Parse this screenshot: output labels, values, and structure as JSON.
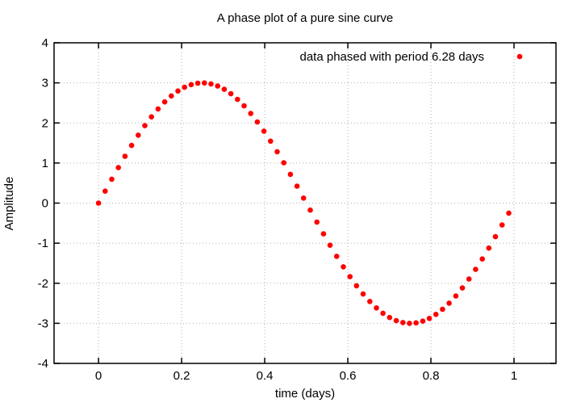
{
  "chart_data": {
    "type": "scatter",
    "title": "A phase plot of a pure sine curve",
    "xlabel": "time (days)",
    "ylabel": "Amplitude",
    "legend": {
      "position": "top-right-inside",
      "entries": [
        {
          "label": "data phased with period 6.28 days",
          "marker": "filled-circle-icon",
          "color": "#ff0000"
        }
      ]
    },
    "x_axis": {
      "ticks": [
        0,
        0.2,
        0.4,
        0.6,
        0.8,
        1
      ],
      "tick_labels": [
        "0",
        "0.2",
        "0.4",
        "0.6",
        "0.8",
        "1"
      ],
      "range": [
        -0.107,
        1.101
      ],
      "grid": true
    },
    "y_axis": {
      "ticks": [
        -4,
        -3,
        -2,
        -1,
        0,
        1,
        2,
        3,
        4
      ],
      "tick_labels": [
        "-4",
        "-3",
        "-2",
        "-1",
        "0",
        "1",
        "2",
        "3",
        "4"
      ],
      "range": [
        -4,
        4
      ],
      "grid": true
    },
    "series": [
      {
        "name": "data phased with period 6.28 days",
        "color": "#ff0000",
        "marker": "filled-circle",
        "marker_radius_px": 3.3,
        "points": [
          [
            0.0,
            0.0
          ],
          [
            0.0159,
            0.299
          ],
          [
            0.0318,
            0.596
          ],
          [
            0.0478,
            0.887
          ],
          [
            0.0637,
            1.168
          ],
          [
            0.0796,
            1.438
          ],
          [
            0.0955,
            1.694
          ],
          [
            0.1115,
            1.933
          ],
          [
            0.1274,
            2.152
          ],
          [
            0.1433,
            2.35
          ],
          [
            0.1592,
            2.524
          ],
          [
            0.1752,
            2.674
          ],
          [
            0.1911,
            2.796
          ],
          [
            0.207,
            2.891
          ],
          [
            0.2229,
            2.956
          ],
          [
            0.2389,
            2.992
          ],
          [
            0.2548,
            2.999
          ],
          [
            0.2707,
            2.975
          ],
          [
            0.2866,
            2.922
          ],
          [
            0.3025,
            2.839
          ],
          [
            0.3185,
            2.728
          ],
          [
            0.3344,
            2.59
          ],
          [
            0.3503,
            2.426
          ],
          [
            0.3662,
            2.237
          ],
          [
            0.3822,
            2.026
          ],
          [
            0.3981,
            1.795
          ],
          [
            0.414,
            1.546
          ],
          [
            0.4299,
            1.282
          ],
          [
            0.4459,
            1.005
          ],
          [
            0.4618,
            0.718
          ],
          [
            0.4777,
            0.423
          ],
          [
            0.4936,
            0.125
          ],
          [
            0.5096,
            -0.175
          ],
          [
            0.5255,
            -0.473
          ],
          [
            0.5414,
            -0.767
          ],
          [
            0.5573,
            -1.052
          ],
          [
            0.5732,
            -1.328
          ],
          [
            0.5892,
            -1.59
          ],
          [
            0.6051,
            -1.836
          ],
          [
            0.621,
            -2.063
          ],
          [
            0.6369,
            -2.27
          ],
          [
            0.6529,
            -2.455
          ],
          [
            0.6688,
            -2.615
          ],
          [
            0.6847,
            -2.749
          ],
          [
            0.7006,
            -2.855
          ],
          [
            0.7166,
            -2.933
          ],
          [
            0.7325,
            -2.981
          ],
          [
            0.7484,
            -3.0
          ],
          [
            0.7643,
            -2.988
          ],
          [
            0.7803,
            -2.947
          ],
          [
            0.7962,
            -2.877
          ],
          [
            0.8121,
            -2.777
          ],
          [
            0.828,
            -2.65
          ],
          [
            0.8439,
            -2.497
          ],
          [
            0.8599,
            -2.318
          ],
          [
            0.8758,
            -2.117
          ],
          [
            0.8917,
            -1.894
          ],
          [
            0.9076,
            -1.652
          ],
          [
            0.9236,
            -1.394
          ],
          [
            0.9395,
            -1.122
          ],
          [
            0.9554,
            -0.838
          ],
          [
            0.9713,
            -0.546
          ],
          [
            0.9873,
            -0.249
          ]
        ]
      }
    ],
    "colors": {
      "background": "#ffffff",
      "frame": "#000000",
      "grid": "#b0b0b0",
      "text": "#000000",
      "points": "#ff0000"
    }
  }
}
